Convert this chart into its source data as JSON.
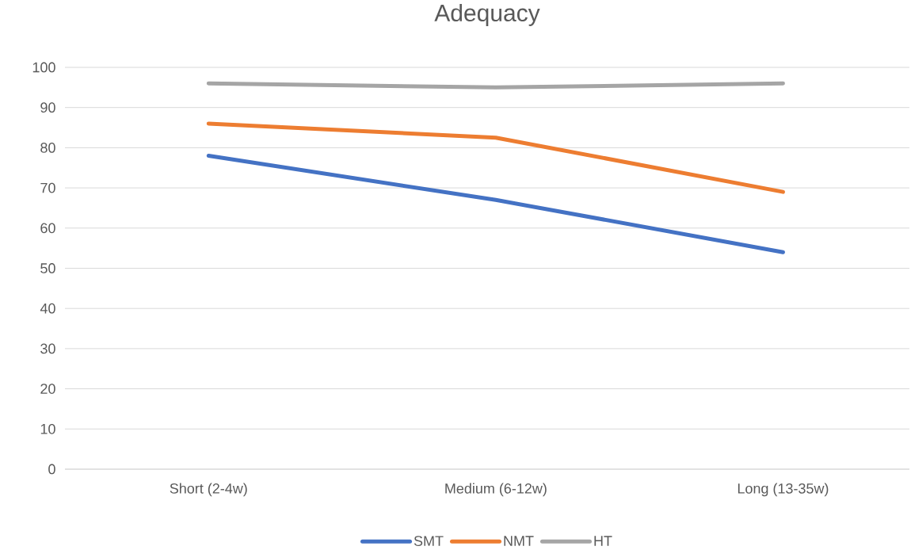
{
  "chart_data": {
    "type": "line",
    "title": "Adequacy",
    "categories": [
      "Short (2-4w)",
      "Medium (6-12w)",
      "Long (13-35w)"
    ],
    "series": [
      {
        "name": "SMT",
        "color": "#4472c4",
        "values": [
          78,
          67,
          54
        ]
      },
      {
        "name": "NMT",
        "color": "#ed7d31",
        "values": [
          86,
          82.5,
          69
        ]
      },
      {
        "name": "HT",
        "color": "#a5a5a5",
        "values": [
          96,
          95,
          96
        ]
      }
    ],
    "ylim": [
      0,
      100
    ],
    "yticks": [
      0,
      10,
      20,
      30,
      40,
      50,
      60,
      70,
      80,
      90,
      100
    ],
    "grid": "y",
    "legend": "bottom",
    "marker": "none",
    "line_style": "solid"
  }
}
